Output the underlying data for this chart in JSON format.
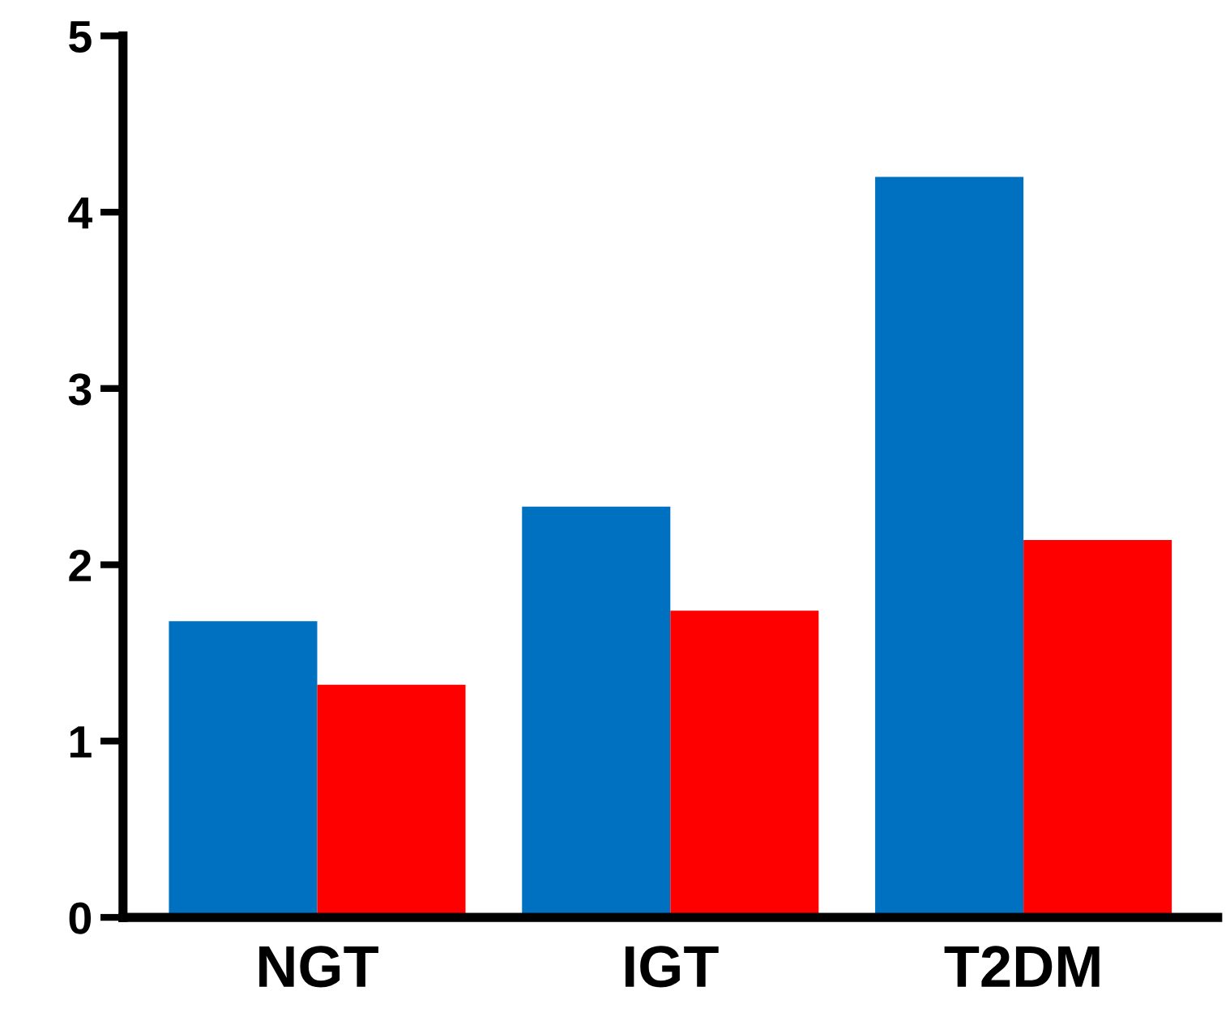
{
  "chart_data": {
    "type": "bar",
    "categories": [
      "NGT",
      "IGT",
      "T2DM"
    ],
    "series": [
      {
        "color": "#0070c0",
        "values": [
          1.68,
          2.33,
          4.2
        ]
      },
      {
        "color": "#ff0000",
        "values": [
          1.32,
          1.74,
          2.14
        ]
      }
    ],
    "ylim": [
      0,
      5
    ],
    "yticks": [
      0,
      1,
      2,
      3,
      4,
      5
    ],
    "grid": false
  }
}
